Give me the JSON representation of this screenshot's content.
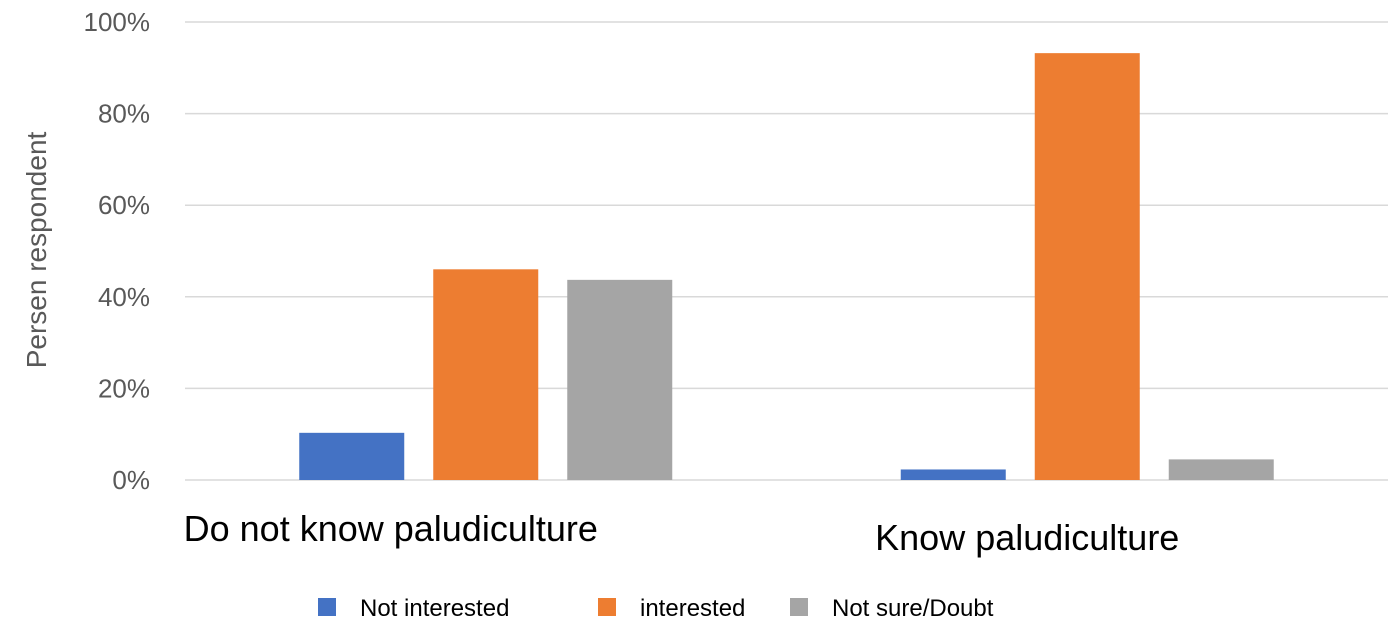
{
  "chart_data": {
    "type": "bar",
    "categories": [
      "Do not know paludiculture",
      "Know paludiculture"
    ],
    "series": [
      {
        "name": "Not interested",
        "values": [
          10.3,
          2.3
        ],
        "color": "#4472C4"
      },
      {
        "name": "interested",
        "values": [
          46.0,
          93.2
        ],
        "color": "#ED7D31"
      },
      {
        "name": "Not sure/Doubt",
        "values": [
          43.7,
          4.5
        ],
        "color": "#A5A5A5"
      }
    ],
    "title": "",
    "xlabel": "",
    "ylabel": "Persen respondent",
    "ylim": [
      0,
      100
    ],
    "yticks": [
      "0%",
      "20%",
      "40%",
      "60%",
      "80%",
      "100%"
    ],
    "grid": true,
    "legend": "bottom"
  }
}
